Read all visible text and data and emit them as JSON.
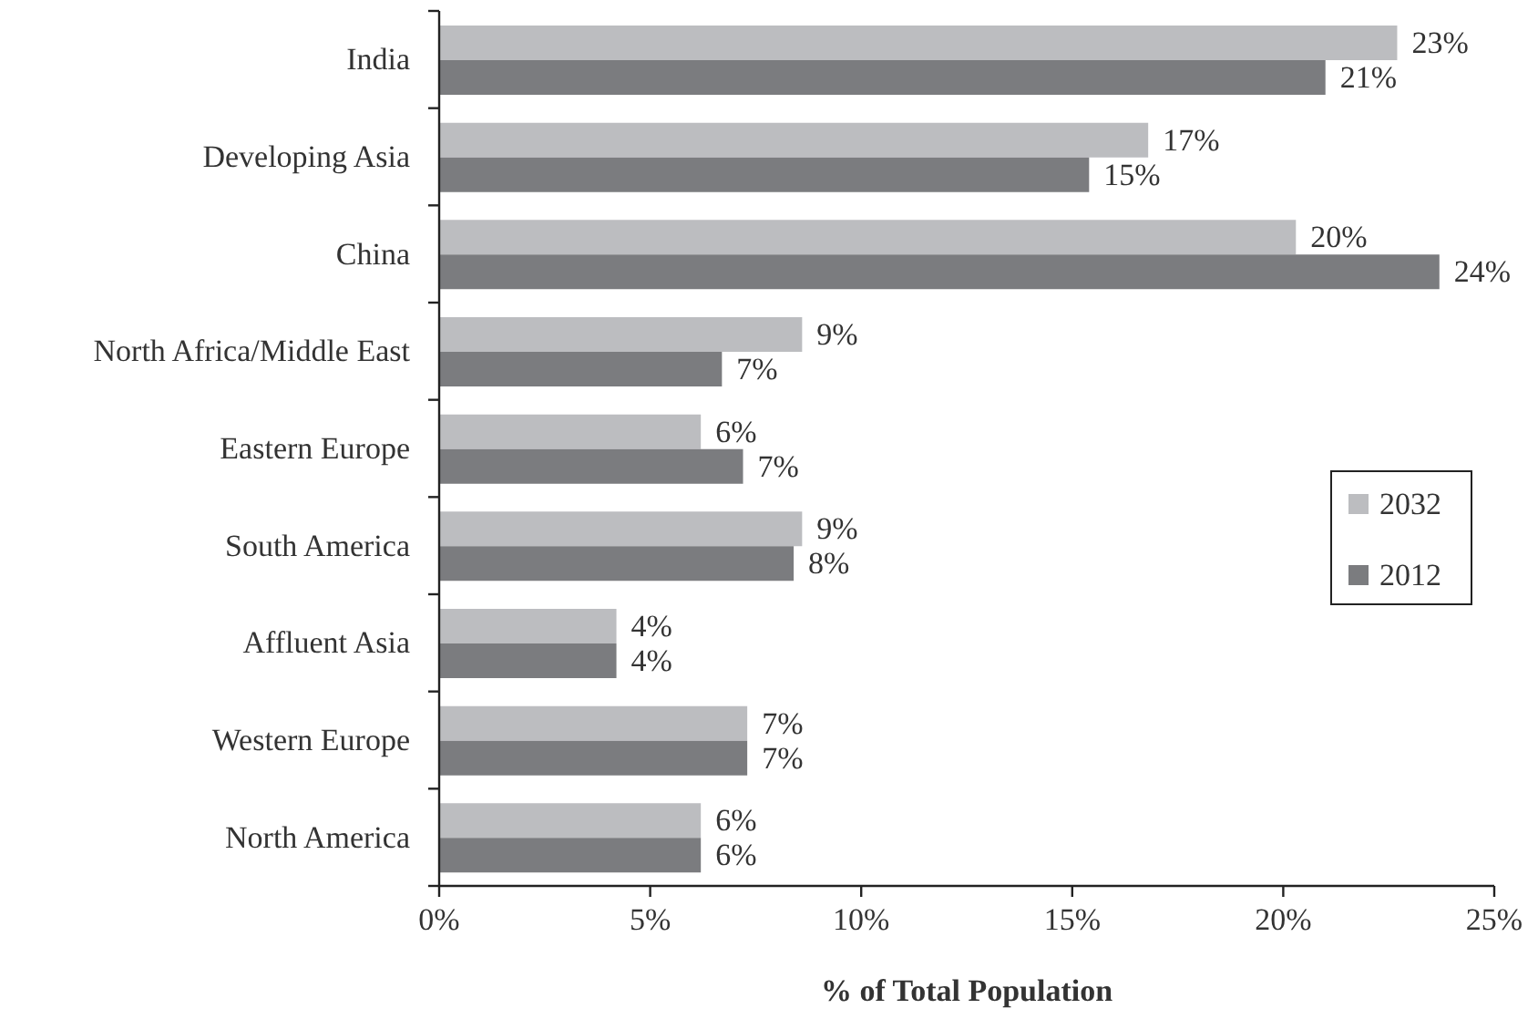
{
  "chart_data": {
    "type": "bar",
    "orientation": "horizontal",
    "categories": [
      "India",
      "Developing Asia",
      "China",
      "North Africa/Middle East",
      "Eastern Europe",
      "South America",
      "Affluent Asia",
      "Western Europe",
      "North America"
    ],
    "series": [
      {
        "name": "2032",
        "color": "#bcbdc0",
        "values": [
          22.7,
          16.8,
          20.3,
          8.6,
          6.2,
          8.6,
          4.2,
          7.3,
          6.2
        ],
        "value_labels": [
          "23%",
          "17%",
          "20%",
          "9%",
          "6%",
          "9%",
          "4%",
          "7%",
          "6%"
        ]
      },
      {
        "name": "2012",
        "color": "#7b7c7f",
        "values": [
          21.0,
          15.4,
          23.7,
          6.7,
          7.2,
          8.4,
          4.2,
          7.3,
          6.2
        ],
        "value_labels": [
          "21%",
          "15%",
          "24%",
          "7%",
          "7%",
          "8%",
          "4%",
          "7%",
          "6%"
        ]
      }
    ],
    "xlabel": "% of Total Population",
    "xlim": [
      0,
      25
    ],
    "xticks": [
      {
        "value": 0,
        "label": "0%"
      },
      {
        "value": 5,
        "label": "5%"
      },
      {
        "value": 10,
        "label": "10%"
      },
      {
        "value": 15,
        "label": "15%"
      },
      {
        "value": 20,
        "label": "20%"
      },
      {
        "value": 25,
        "label": "25%"
      }
    ],
    "legend": "right"
  }
}
